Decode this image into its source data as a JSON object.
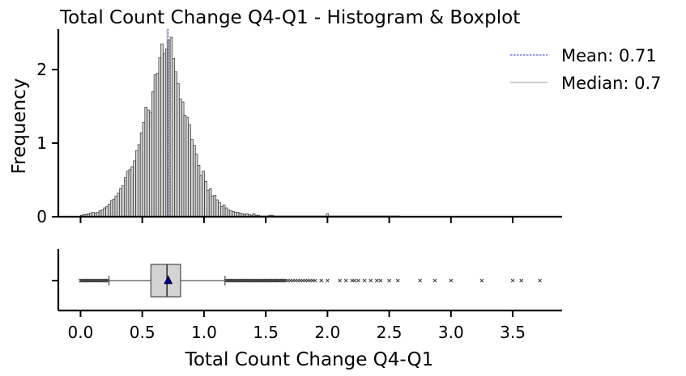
{
  "chart_data": {
    "type": "histogram",
    "title": "Total Count Change Q4-Q1 - Histogram & Boxplot",
    "xlabel": "Total Count Change Q4-Q1",
    "ylabel": "Frequency",
    "xlim": [
      -0.18,
      3.9
    ],
    "ylim": [
      0,
      2.55
    ],
    "x_ticks": [
      0.0,
      0.5,
      1.0,
      1.5,
      2.0,
      2.5,
      3.0,
      3.5
    ],
    "x_tick_labels": [
      "0.0",
      "0.5",
      "1.0",
      "1.5",
      "2.0",
      "2.5",
      "3.0",
      "3.5"
    ],
    "y_ticks": [
      0,
      1,
      2
    ],
    "y_tick_labels": [
      "0",
      "1",
      "2"
    ],
    "bin_width": 0.0186,
    "histogram": {
      "bin_centers": [
        0.009,
        0.028,
        0.046,
        0.065,
        0.084,
        0.102,
        0.121,
        0.139,
        0.158,
        0.177,
        0.195,
        0.214,
        0.232,
        0.251,
        0.27,
        0.288,
        0.307,
        0.325,
        0.344,
        0.363,
        0.381,
        0.4,
        0.418,
        0.437,
        0.456,
        0.474,
        0.493,
        0.511,
        0.53,
        0.549,
        0.567,
        0.586,
        0.604,
        0.623,
        0.642,
        0.66,
        0.679,
        0.697,
        0.716,
        0.735,
        0.753,
        0.772,
        0.79,
        0.809,
        0.828,
        0.846,
        0.865,
        0.883,
        0.902,
        0.921,
        0.939,
        0.958,
        0.976,
        0.995,
        1.014,
        1.032,
        1.051,
        1.069,
        1.088,
        1.107,
        1.125,
        1.144,
        1.162,
        1.181,
        1.2,
        1.218,
        1.237,
        1.255,
        1.274,
        1.293,
        1.311,
        1.33,
        1.348,
        1.367,
        1.386,
        1.404,
        1.423,
        1.441,
        1.46,
        1.479,
        1.497,
        1.516,
        1.534,
        1.553,
        1.572,
        1.59,
        1.609,
        1.627,
        1.646,
        1.665,
        1.683,
        1.702,
        1.72,
        1.739,
        1.758,
        1.776,
        1.795,
        1.813,
        1.832,
        1.851,
        1.869,
        1.888,
        1.906,
        1.925,
        1.944,
        1.962,
        1.981,
        2.0,
        2.018,
        2.037,
        2.055,
        2.074,
        2.093,
        2.111,
        2.13,
        2.148,
        2.167,
        2.186,
        2.204,
        2.223,
        2.241,
        2.26,
        2.279,
        2.297,
        2.316,
        2.334,
        2.353,
        2.372,
        2.39,
        2.409,
        2.427,
        2.446,
        2.465,
        2.483,
        2.502,
        2.52,
        2.539,
        2.558,
        2.576
      ],
      "frequencies": [
        0.02,
        0.03,
        0.03,
        0.04,
        0.05,
        0.06,
        0.05,
        0.06,
        0.08,
        0.09,
        0.12,
        0.14,
        0.17,
        0.22,
        0.24,
        0.28,
        0.32,
        0.38,
        0.42,
        0.53,
        0.62,
        0.64,
        0.68,
        0.76,
        0.9,
        0.98,
        1.14,
        1.28,
        1.49,
        1.45,
        1.42,
        1.7,
        1.93,
        1.95,
        2.16,
        2.35,
        2.22,
        2.28,
        2.4,
        2.44,
        2.15,
        1.97,
        1.81,
        1.6,
        1.56,
        1.38,
        1.35,
        1.25,
        1.05,
        0.97,
        0.85,
        0.7,
        0.56,
        0.62,
        0.48,
        0.36,
        0.38,
        0.28,
        0.29,
        0.23,
        0.19,
        0.14,
        0.16,
        0.12,
        0.09,
        0.08,
        0.07,
        0.06,
        0.06,
        0.05,
        0.04,
        0.03,
        0.04,
        0.03,
        0.02,
        0.04,
        0.02,
        0.02,
        0.01,
        0.01,
        0.01,
        0.01,
        0.02,
        0.02,
        0.01,
        0.01,
        0.01,
        0.01,
        0.01,
        0.01,
        0.01,
        0.01,
        0.01,
        0.01,
        0.01,
        0.01,
        0.01,
        0.01,
        0.01,
        0.01,
        0.01,
        0.01,
        0.01,
        0.01,
        0.01,
        0.01,
        0.01,
        0.04,
        0.01,
        0.01,
        0.01,
        0.01,
        0.01,
        0.01,
        0.01,
        0.01,
        0.01,
        0.01,
        0.01,
        0.01,
        0.01,
        0.01,
        0.01,
        0.01,
        0.01,
        0.01,
        0.01,
        0.01,
        0.01,
        0.01,
        0.01,
        0.01,
        0.01,
        0.01,
        0.01,
        0.01,
        0.01,
        0.01,
        0.01
      ],
      "fill": "#d3d3d3",
      "edge": "#333333"
    },
    "reference_lines": [
      {
        "label": "Mean: 0.71",
        "value": 0.71,
        "style": "dashed",
        "color": "#3333cc"
      },
      {
        "label": "Median: 0.7",
        "value": 0.7,
        "style": "solid",
        "color": "#999999"
      }
    ],
    "legend_position": "top-right",
    "boxplot": {
      "q1": 0.57,
      "median": 0.7,
      "q3": 0.81,
      "whisker_low": 0.23,
      "whisker_high": 1.17,
      "mean": 0.71,
      "box_fill": "#d3d3d3",
      "mean_marker_color": "#00008b",
      "outliers": [
        0.0,
        0.01,
        0.02,
        0.03,
        0.04,
        0.05,
        0.06,
        0.07,
        0.08,
        0.09,
        0.1,
        0.11,
        0.12,
        0.13,
        0.14,
        0.15,
        0.16,
        0.17,
        0.18,
        0.19,
        0.2,
        0.21,
        0.22,
        1.18,
        1.19,
        1.2,
        1.21,
        1.22,
        1.23,
        1.24,
        1.25,
        1.26,
        1.27,
        1.28,
        1.29,
        1.3,
        1.31,
        1.32,
        1.33,
        1.34,
        1.35,
        1.36,
        1.37,
        1.38,
        1.39,
        1.4,
        1.41,
        1.42,
        1.43,
        1.44,
        1.45,
        1.46,
        1.47,
        1.48,
        1.49,
        1.5,
        1.51,
        1.52,
        1.53,
        1.54,
        1.55,
        1.56,
        1.57,
        1.58,
        1.59,
        1.6,
        1.61,
        1.62,
        1.63,
        1.64,
        1.65,
        1.66,
        1.68,
        1.7,
        1.72,
        1.74,
        1.76,
        1.78,
        1.8,
        1.82,
        1.84,
        1.86,
        1.88,
        1.9,
        1.95,
        2.0,
        2.1,
        2.15,
        2.2,
        2.22,
        2.25,
        2.3,
        2.35,
        2.4,
        2.43,
        2.5,
        2.57,
        2.75,
        2.87,
        3.0,
        3.25,
        3.5,
        3.57,
        3.72
      ]
    }
  }
}
